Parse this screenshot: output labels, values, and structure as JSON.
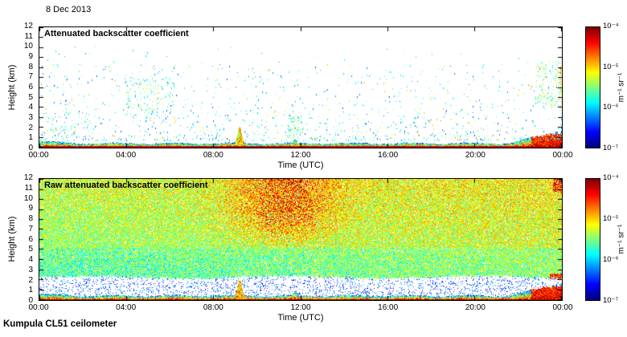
{
  "figure": {
    "date": "8 Dec 2013",
    "footer": "Kumpula CL51 ceilometer",
    "background_color": "#ffffff",
    "frame_color": "#000000"
  },
  "chart_data": [
    {
      "type": "heatmap",
      "title": "Attenuated backscatter coefficient",
      "xlabel": "Time (UTC)",
      "ylabel": "Height (km)",
      "x_ticks": [
        "00:00",
        "04:00",
        "08:00",
        "12:00",
        "16:00",
        "20:00",
        "00:00"
      ],
      "x_hours": [
        0,
        4,
        8,
        12,
        16,
        20,
        24
      ],
      "xlim_hours": [
        0,
        24
      ],
      "y_ticks": [
        0,
        1,
        2,
        3,
        4,
        5,
        6,
        7,
        8,
        9,
        10,
        11,
        12
      ],
      "ylim_km": [
        0,
        12
      ],
      "grid": false,
      "colormap": "jet",
      "colormap_stops": [
        "#00008f",
        "#0000ff",
        "#00ffff",
        "#80ff80",
        "#ffff00",
        "#ff0000",
        "#800000"
      ],
      "colorbar": {
        "scale": "log",
        "range": [
          1e-07,
          0.0001
        ],
        "ticks": [
          "10⁻⁴",
          "10⁻⁵",
          "10⁻⁶",
          "10⁻⁷"
        ],
        "unit": "m⁻¹ sr⁻¹",
        "position": "right"
      },
      "content": {
        "style": "sparse weak echoes on white background",
        "boundary_layer_top_km": 0.5,
        "plume_hour_utc": 9.2,
        "plume_top_km": 2.1,
        "evening_deepening_start_hour_utc": 21.5,
        "evening_layer_top_km": 1.9,
        "aloft_speck_count": 1400,
        "speck_clusters_hours_utc": [
          [
            4,
            6.2
          ],
          [
            11.4,
            12.1
          ],
          [
            22.8,
            24
          ]
        ]
      }
    },
    {
      "type": "heatmap",
      "title": "Raw attenuated backscatter coefficient",
      "xlabel": "Time (UTC)",
      "ylabel": "Height (km)",
      "x_ticks": [
        "00:00",
        "04:00",
        "08:00",
        "12:00",
        "16:00",
        "20:00",
        "00:00"
      ],
      "x_hours": [
        0,
        4,
        8,
        12,
        16,
        20,
        24
      ],
      "xlim_hours": [
        0,
        24
      ],
      "y_ticks": [
        0,
        1,
        2,
        3,
        4,
        5,
        6,
        7,
        8,
        9,
        10,
        11,
        12
      ],
      "ylim_km": [
        0,
        12
      ],
      "grid": false,
      "colormap": "jet",
      "colormap_stops": [
        "#00008f",
        "#0000ff",
        "#00ffff",
        "#80ff80",
        "#ffff00",
        "#ff0000",
        "#800000"
      ],
      "colorbar": {
        "scale": "log",
        "range": [
          1e-07,
          0.0001
        ],
        "ticks": [
          "10⁻⁴",
          "10⁻⁵",
          "10⁻⁶",
          "10⁻⁷"
        ],
        "unit": "m⁻¹ sr⁻¹",
        "position": "right"
      },
      "content": {
        "style": "dense speckle noise over the full height range",
        "clear_band_km": [
          0.8,
          2.1
        ],
        "enhanced_noise_hours_utc": [
          9,
          13.5
        ],
        "boundary_layer_top_km": 0.5,
        "plume_hour_utc": 9.2
      }
    }
  ]
}
